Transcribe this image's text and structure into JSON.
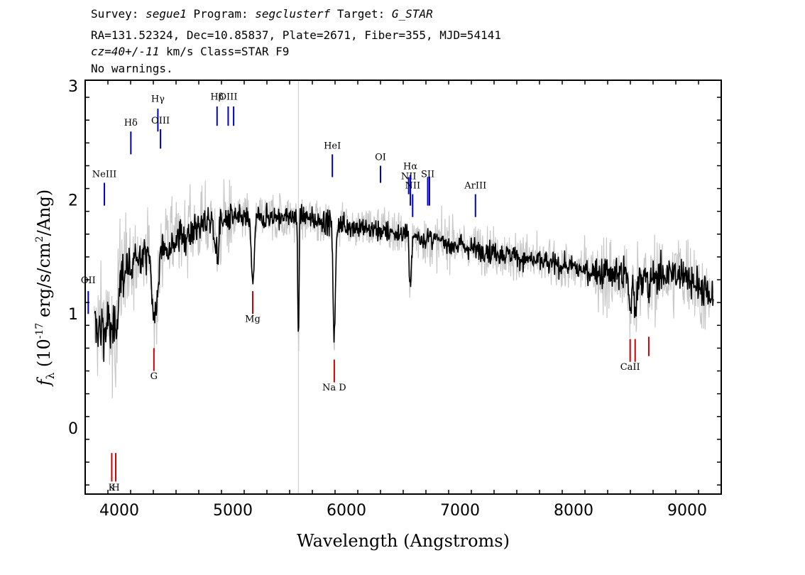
{
  "header": {
    "line1": {
      "survey_label": "Survey:",
      "survey": "segue1",
      "program_label": "Program:",
      "program": "segclusterf",
      "target_label": "Target:",
      "target": "G_STAR"
    },
    "line2": "RA=131.52324, Dec=10.85837, Plate=2671, Fiber=355, MJD=54141",
    "line3": {
      "cz": "cz=40+/-11",
      "rest": "km/s Class=STAR F9"
    },
    "line4": "No warnings."
  },
  "chart_data": {
    "type": "line",
    "xlabel": "Wavelength (Angstroms)",
    "ylabel": "f_λ (10^-17 erg/s/cm^2/Ang)",
    "xlim": [
      3700,
      9300
    ],
    "ylim": [
      -0.58,
      3.05
    ],
    "x_ticks": [
      4000,
      5000,
      6000,
      7000,
      8000,
      9000
    ],
    "y_ticks": [
      0,
      1,
      2,
      3
    ],
    "grid": false,
    "colors": {
      "spectrum": "#000000",
      "error": "#c8c8c8",
      "emission": "#0000cc",
      "absorption": "#cc0000",
      "sky": "#c8c8c8"
    },
    "sky_line": 5577,
    "continuum": [
      [
        3800,
        0.9
      ],
      [
        3900,
        1.0
      ],
      [
        4000,
        1.3
      ],
      [
        4100,
        1.5
      ],
      [
        4300,
        1.55
      ],
      [
        4500,
        1.65
      ],
      [
        4800,
        1.82
      ],
      [
        5200,
        1.85
      ],
      [
        5600,
        1.85
      ],
      [
        6000,
        1.78
      ],
      [
        6500,
        1.7
      ],
      [
        7000,
        1.6
      ],
      [
        7500,
        1.5
      ],
      [
        8000,
        1.4
      ],
      [
        8500,
        1.32
      ],
      [
        9000,
        1.35
      ],
      [
        9230,
        1.1
      ]
    ],
    "features": [
      [
        3830,
        -0.05,
        40
      ],
      [
        3880,
        -0.1,
        20
      ],
      [
        3933,
        -0.25,
        25
      ],
      [
        3968,
        -0.3,
        25
      ],
      [
        4102,
        -0.2,
        25
      ],
      [
        4305,
        -0.6,
        25
      ],
      [
        4340,
        -0.3,
        20
      ],
      [
        4861,
        -0.3,
        25
      ],
      [
        5175,
        -0.55,
        20
      ],
      [
        5577,
        -1.05,
        8
      ],
      [
        5893,
        -1.0,
        15
      ],
      [
        6563,
        -0.4,
        15
      ],
      [
        8498,
        -0.3,
        15
      ],
      [
        8542,
        -0.3,
        15
      ],
      [
        8662,
        -0.2,
        15
      ]
    ],
    "emission_lines": [
      {
        "label": "OII",
        "x": 3727,
        "y1": 1.0,
        "y2": 1.2,
        "label_y": 1.27
      },
      {
        "label": "NeIII",
        "x": 3869,
        "y1": 1.95,
        "y2": 2.15,
        "label_y": 2.2
      },
      {
        "label": "Hδ",
        "x": 4102,
        "y1": 2.4,
        "y2": 2.6,
        "label_y": 2.65
      },
      {
        "label": "Hγ",
        "x": 4340,
        "y1": 2.6,
        "y2": 2.8,
        "label_y": 2.86
      },
      {
        "label": "OIII",
        "x": 4363,
        "y1": 2.45,
        "y2": 2.62,
        "label_y": 2.67
      },
      {
        "label": "Hβ",
        "x": 4861,
        "y1": 2.65,
        "y2": 2.82,
        "label_y": 2.88
      },
      {
        "label": "OIII",
        "x": 4959,
        "y1": 2.65,
        "y2": 2.82,
        "label_y": 2.88
      },
      {
        "label": "",
        "x": 5007,
        "y1": 2.65,
        "y2": 2.82,
        "label_y": 0
      },
      {
        "label": "HeI",
        "x": 5876,
        "y1": 2.2,
        "y2": 2.4,
        "label_y": 2.45
      },
      {
        "label": "OI",
        "x": 6300,
        "y1": 2.15,
        "y2": 2.3,
        "label_y": 2.35
      },
      {
        "label": "NII",
        "x": 6548,
        "y1": 2.05,
        "y2": 2.2,
        "label_y": 2.18
      },
      {
        "label": "Hα",
        "x": 6563,
        "y1": 1.95,
        "y2": 2.22,
        "label_y": 2.27
      },
      {
        "label": "NII",
        "x": 6583,
        "y1": 1.85,
        "y2": 2.05,
        "label_y": 2.1
      },
      {
        "label": "SII",
        "x": 6716,
        "y1": 1.95,
        "y2": 2.2,
        "label_y": 2.2
      },
      {
        "label": "",
        "x": 6731,
        "y1": 1.95,
        "y2": 2.2,
        "label_y": 0
      },
      {
        "label": "ArIII",
        "x": 7136,
        "y1": 1.85,
        "y2": 2.05,
        "label_y": 2.1
      }
    ],
    "absorption_lines": [
      {
        "label": "K",
        "x": 3934,
        "y1": -0.47,
        "y2": -0.22,
        "label_y": -0.55
      },
      {
        "label": "H",
        "x": 3969,
        "y1": -0.47,
        "y2": -0.22,
        "label_y": -0.55
      },
      {
        "label": "G",
        "x": 4305,
        "y1": 0.5,
        "y2": 0.7,
        "label_y": 0.43
      },
      {
        "label": "Mg",
        "x": 5175,
        "y1": 1.0,
        "y2": 1.2,
        "label_y": 0.93
      },
      {
        "label": "Na D",
        "x": 5893,
        "y1": 0.4,
        "y2": 0.6,
        "label_y": 0.33
      },
      {
        "label": "CaII",
        "x": 8498,
        "y1": 0.58,
        "y2": 0.78,
        "label_y": 0.51
      },
      {
        "label": "",
        "x": 8542,
        "y1": 0.58,
        "y2": 0.78,
        "label_y": 0
      },
      {
        "label": "",
        "x": 8662,
        "y1": 0.63,
        "y2": 0.8,
        "label_y": 0
      }
    ]
  }
}
